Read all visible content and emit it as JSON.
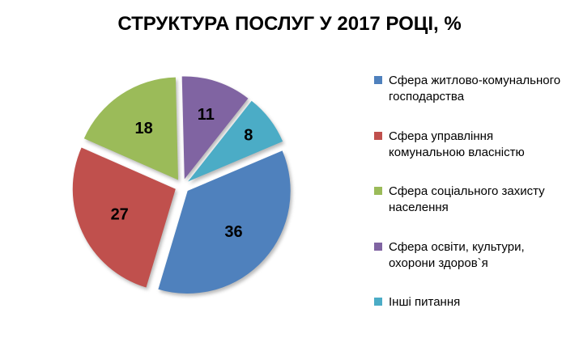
{
  "chart_data": {
    "type": "pie",
    "title": "СТРУКТУРА ПОСЛУГ У 2017 РОЦІ, %",
    "units": "%",
    "total": 100,
    "start_angle_deg": 67,
    "direction": "clockwise",
    "exploded": true,
    "show_data_labels": true,
    "legend_position": "right",
    "slices": [
      {
        "label": "Сфера житлово-комунального господарства",
        "value": 36,
        "color": "#4F81BD"
      },
      {
        "label": "Сфера управління комунальною власністю",
        "value": 27,
        "color": "#C0504D"
      },
      {
        "label": "Сфера соціального захисту населення",
        "value": 18,
        "color": "#9BBB59"
      },
      {
        "label": "Сфера освіти, культури, охорони здоров`я",
        "value": 11,
        "color": "#8064A2"
      },
      {
        "label": "Інші питання",
        "value": 8,
        "color": "#4BACC6"
      }
    ]
  }
}
